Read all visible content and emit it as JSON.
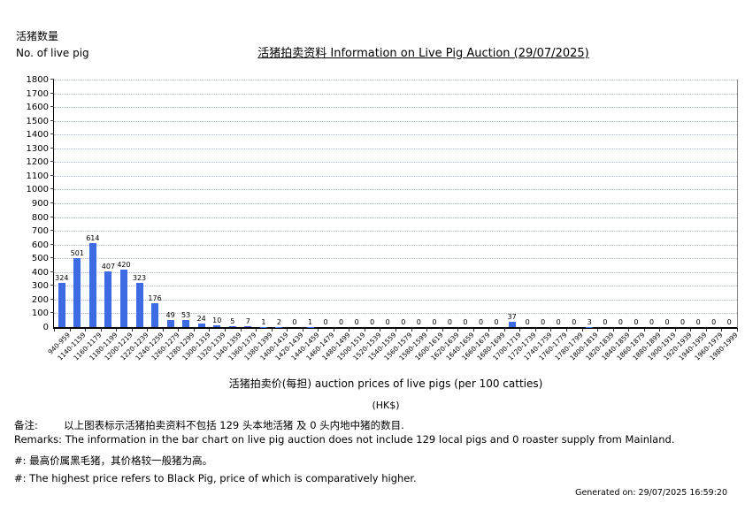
{
  "chart_data": {
    "type": "bar",
    "title": "活猪拍卖资料 Information on Live Pig Auction (29/07/2025)",
    "ylabel_zh": "活猪数量",
    "ylabel_en": "No. of live pig",
    "xlabel": "活猪拍卖价(每担) auction prices of live pigs (per 100 catties)",
    "xlabel_unit": "(HK$)",
    "ylim": [
      0,
      1800
    ],
    "yticks": [
      0,
      100,
      200,
      300,
      400,
      500,
      600,
      700,
      800,
      900,
      1000,
      1100,
      1200,
      1300,
      1400,
      1500,
      1600,
      1700,
      1800
    ],
    "grid": true,
    "bar_color": "#3d6be4",
    "grid_color": "#a9b6cd",
    "categories": [
      "940-959",
      "1140-1159",
      "1160-1179",
      "1180-1199",
      "1200-1219",
      "1220-1239",
      "1240-1259",
      "1260-1279",
      "1280-1299",
      "1300-1319",
      "1320-1339",
      "1340-1359",
      "1360-1379",
      "1380-1399",
      "1400-1419",
      "1420-1439",
      "1440-1459",
      "1460-1479",
      "1480-1499",
      "1500-1519",
      "1520-1539",
      "1540-1559",
      "1560-1579",
      "1580-1599",
      "1600-1619",
      "1620-1639",
      "1640-1659",
      "1660-1679",
      "1680-1699",
      "1700-1719",
      "1720-1739",
      "1740-1759",
      "1760-1779",
      "1780-1799",
      "1800-1819",
      "1820-1839",
      "1840-1859",
      "1860-1879",
      "1880-1899",
      "1900-1919",
      "1920-1939",
      "1940-1959",
      "1960-1979",
      "1980-1999"
    ],
    "values": [
      324,
      501,
      614,
      407,
      420,
      323,
      176,
      49,
      53,
      24,
      10,
      5,
      7,
      1,
      2,
      0,
      1,
      0,
      0,
      0,
      0,
      0,
      0,
      0,
      0,
      0,
      0,
      0,
      0,
      37,
      0,
      0,
      0,
      0,
      3,
      0,
      0,
      0,
      0,
      0,
      0,
      0,
      0,
      0
    ]
  },
  "footer": {
    "remark_zh": "备注:        以上图表标示活猪拍卖资料不包括 129 头本地活猪 及 0 头内地中猪的数目.",
    "remark_en": "Remarks: The information in the bar chart on live pig auction does not include 129 local pigs and 0 roaster supply from Mainland.",
    "note_zh": "#: 最高价属黑毛猪，其价格较一般猪为高。",
    "note_en": "#: The highest price refers to Black Pig, price of which is comparatively higher.",
    "generated_on": "Generated on: 29/07/2025 16:59:20"
  }
}
